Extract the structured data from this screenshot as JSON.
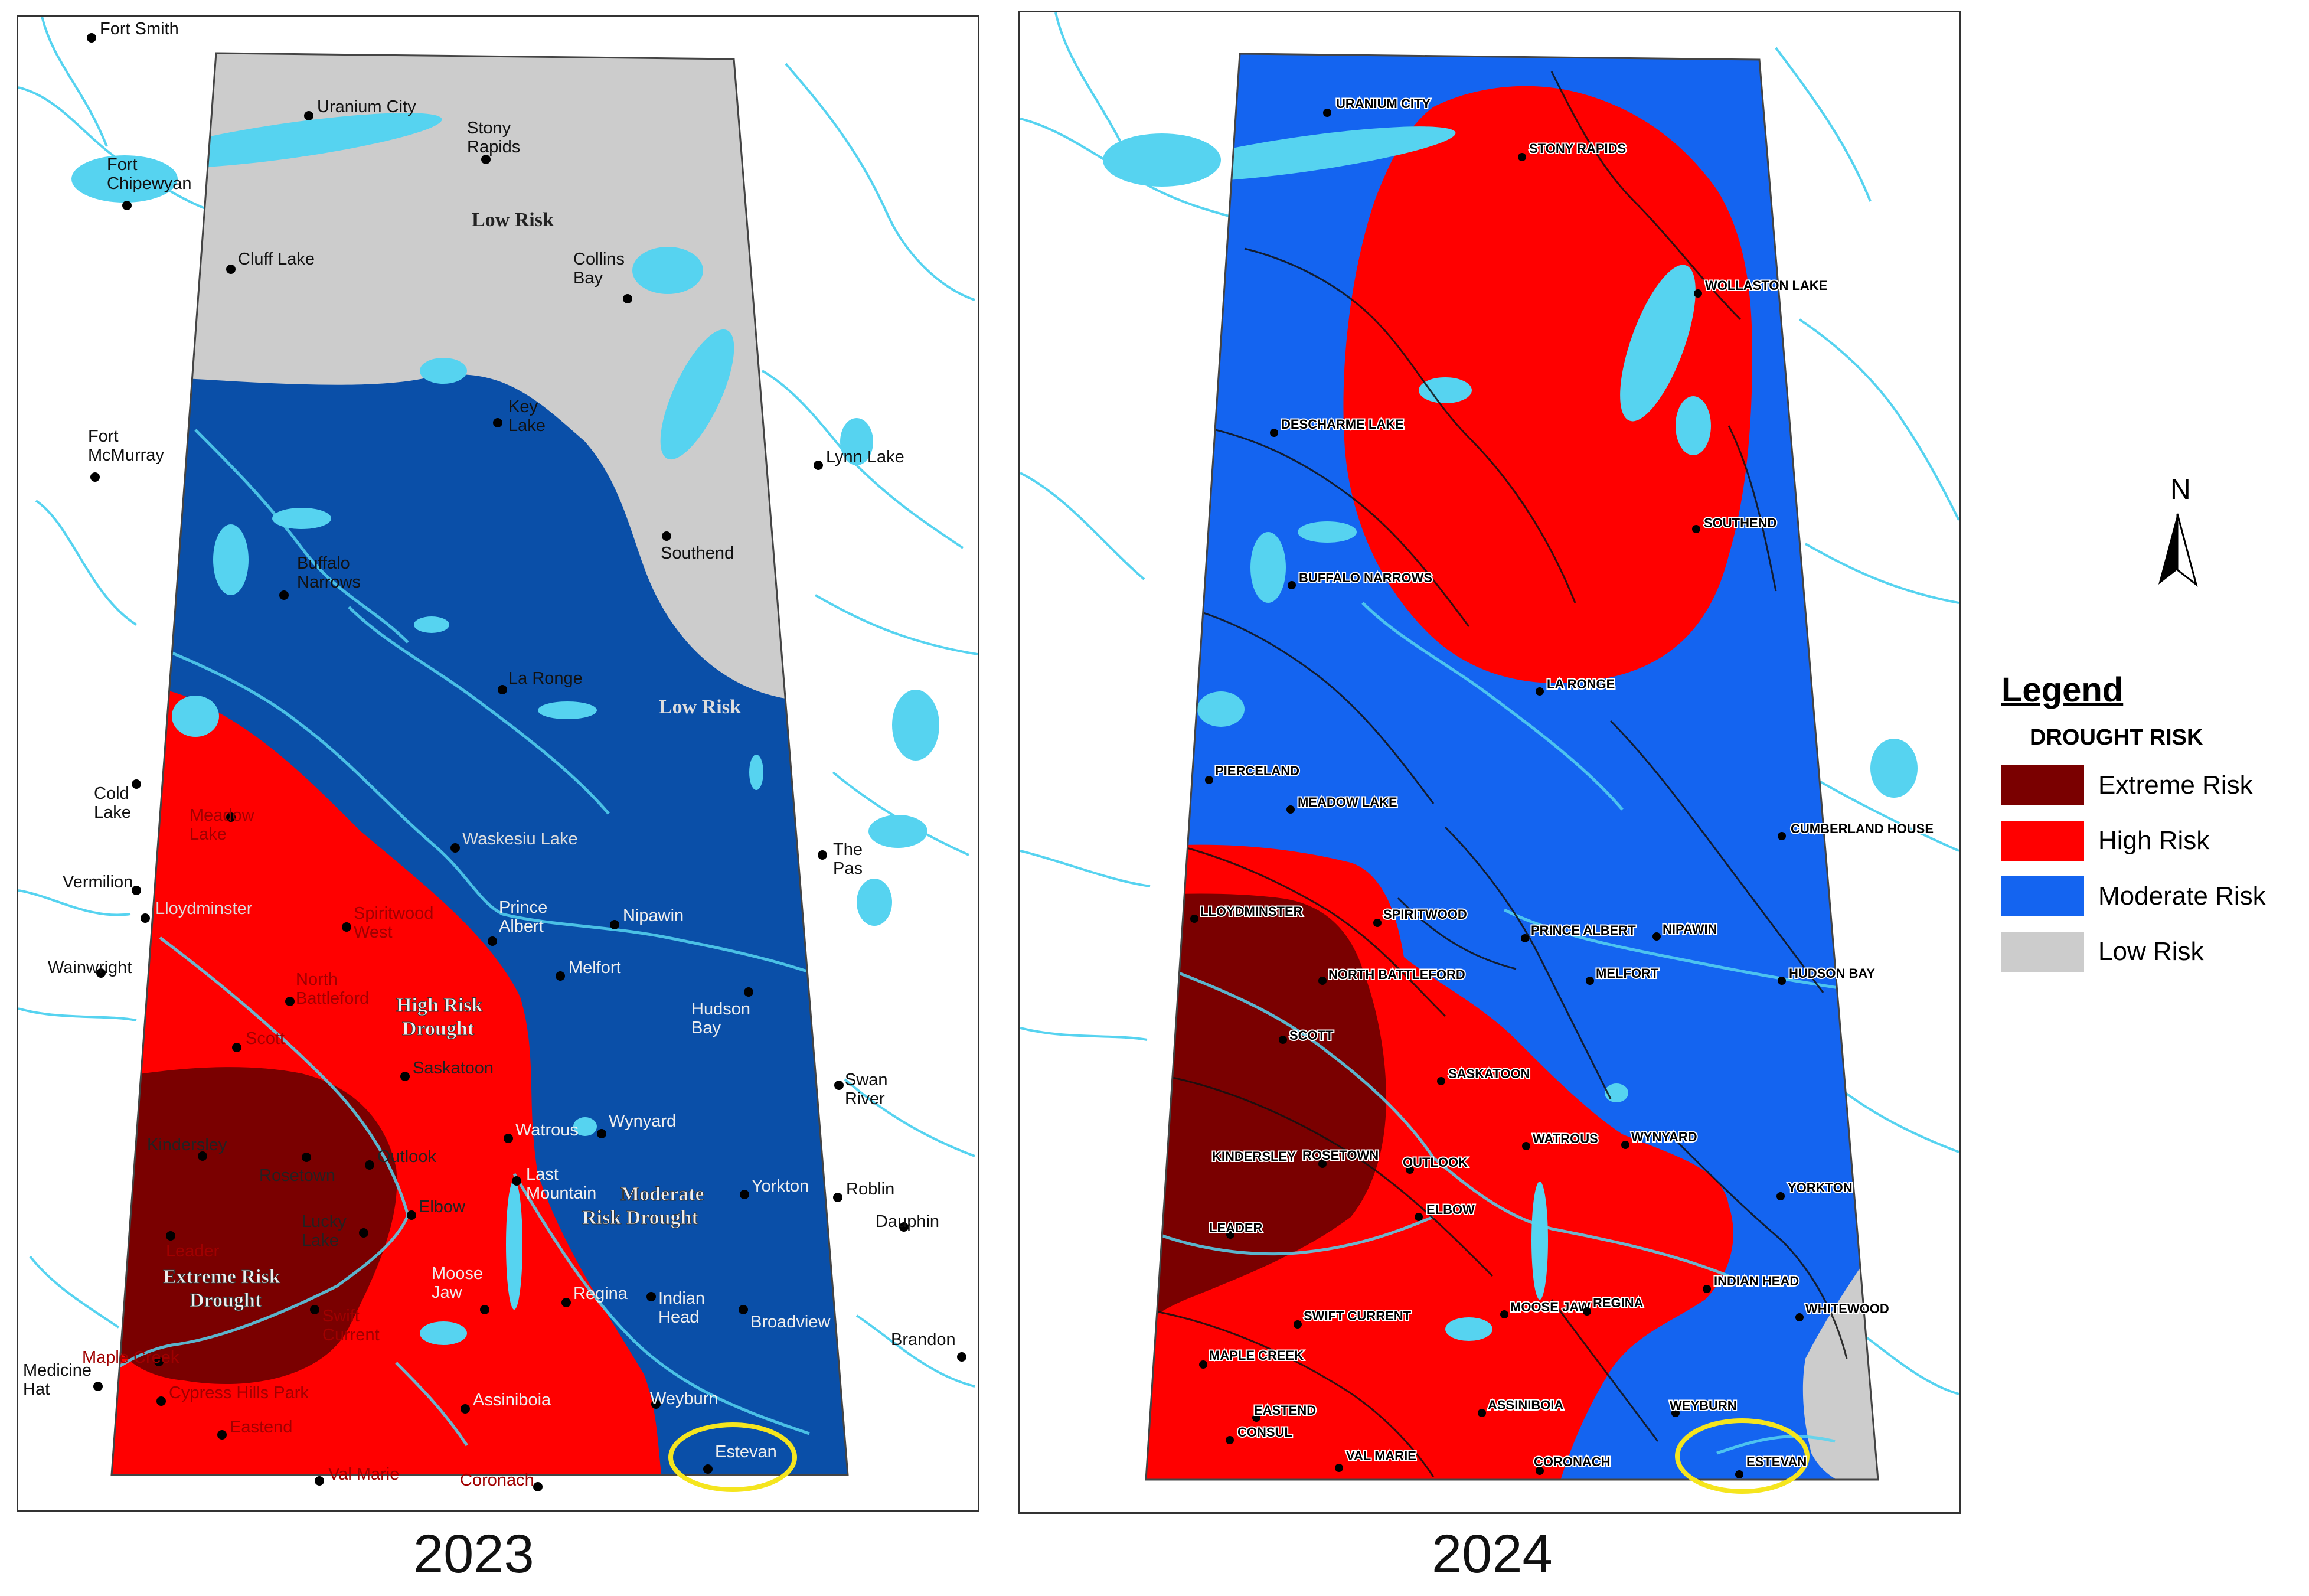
{
  "maps": {
    "map2023": {
      "year": "2023",
      "zone_labels": {
        "low_north": "Low Risk",
        "low_mid": "Low Risk",
        "high": [
          "High Risk",
          "Drought"
        ],
        "moderate": [
          "Moderate",
          "Risk Drought"
        ],
        "extreme": [
          "Extreme Risk",
          "Drought"
        ]
      },
      "places": {
        "fort_smith": "Fort Smith",
        "uranium_city": "Uranium City",
        "stony_rapids": [
          "Stony",
          "Rapids"
        ],
        "fort_chipewyan": [
          "Fort",
          "Chipewyan"
        ],
        "cluff_lake": "Cluff Lake",
        "collins_bay": [
          "Collins",
          "Bay"
        ],
        "key_lake": [
          "Key",
          "Lake"
        ],
        "fort_mcmurray": [
          "Fort",
          "McMurray"
        ],
        "lynn_lake": "Lynn Lake",
        "southend": "Southend",
        "buffalo_narrows": [
          "Buffalo",
          "Narrows"
        ],
        "la_ronge": "La Ronge",
        "cold_lake": [
          "Cold",
          "Lake"
        ],
        "meadow_lake": [
          "Meadow",
          "Lake"
        ],
        "waskesiu_lake": "Waskesiu Lake",
        "the_pas": [
          "The",
          "Pas"
        ],
        "vermilion": "Vermilion",
        "lloydminster": "Lloydminster",
        "spiritwood_west": [
          "Spiritwood",
          "West"
        ],
        "prince_albert": [
          "Prince",
          "Albert"
        ],
        "nipawin": "Nipawin",
        "wainwright": "Wainwright",
        "melfort": "Melfort",
        "north_battleford": [
          "North",
          "Battleford"
        ],
        "hudson_bay": [
          "Hudson",
          "Bay"
        ],
        "scott": "Scott",
        "swan_river": [
          "Swan",
          "River"
        ],
        "saskatoon": "Saskatoon",
        "wynyard": "Wynyard",
        "kindersley": "Kindersley",
        "watrous": "Watrous",
        "outlook": "Outlook",
        "rosetown": "Rosetown",
        "last_mountain": [
          "Last",
          "Mountain"
        ],
        "yorkton": "Yorkton",
        "roblin": "Roblin",
        "elbow": "Elbow",
        "lucky_lake": [
          "Lucky",
          "Lake"
        ],
        "dauphin": "Dauphin",
        "leader": "Leader",
        "moose_jaw": [
          "Moose",
          "Jaw"
        ],
        "regina": "Regina",
        "indian_head": [
          "Indian",
          "Head"
        ],
        "swift_current": [
          "Swift",
          "Current"
        ],
        "broadview": "Broadview",
        "brandon": "Brandon",
        "medicine_hat": [
          "Medicine",
          "Hat"
        ],
        "maple_creek": "Maple Creek",
        "cypress_hills_park": "Cypress Hills Park",
        "assiniboia": "Assiniboia",
        "weyburn": "Weyburn",
        "eastend": "Eastend",
        "estevan": "Estevan",
        "val_marie": "Val Marie",
        "coronach": "Coronach"
      }
    },
    "map2024": {
      "year": "2024",
      "places": {
        "uranium_city": "URANIUM CITY",
        "stony_rapids": "STONY RAPIDS",
        "wollaston_lake": "WOLLASTON LAKE",
        "descharme_lake": "DESCHARME LAKE",
        "southend": "SOUTHEND",
        "buffalo_narrows": "BUFFALO NARROWS",
        "la_ronge": "LA RONGE",
        "pierceland": "PIERCELAND",
        "meadow_lake": "MEADOW LAKE",
        "cumberland_house": "CUMBERLAND HOUSE",
        "lloydminster": "LLOYDMINSTER",
        "spiritwood": "SPIRITWOOD",
        "prince_albert": "PRINCE ALBERT",
        "nipawin": "NIPAWIN",
        "north_battleford": "NORTH BATTLEFORD",
        "melfort": "MELFORT",
        "hudson_bay": "HUDSON BAY",
        "scott": "SCOTT",
        "saskatoon": "SASKATOON",
        "watrous": "WATROUS",
        "wynyard": "WYNYARD",
        "kindersley": "KINDERSLEY",
        "rosetown": "ROSETOWN",
        "outlook": "OUTLOOK",
        "yorkton": "YORKTON",
        "elbow": "ELBOW",
        "leader": "LEADER",
        "indian_head": "INDIAN HEAD",
        "swift_current": "SWIFT CURRENT",
        "moose_jaw": "MOOSE JAW",
        "regina": "REGINA",
        "whitewood": "WHITEWOOD",
        "maple_creek": "MAPLE CREEK",
        "weyburn": "WEYBURN",
        "assiniboia": "ASSINIBOIA",
        "eastend": "EASTEND",
        "consul": "CONSUL",
        "val_marie": "VAL MARIE",
        "coronach": "CORONACH",
        "estevan": "ESTEVAN"
      }
    }
  },
  "north_arrow": {
    "label": "N"
  },
  "legend": {
    "title": "Legend",
    "subtitle": "DROUGHT RISK",
    "items": [
      {
        "label": "Extreme Risk",
        "color": "#7a0000"
      },
      {
        "label": "High Risk",
        "color": "#ff0000"
      },
      {
        "label": "Moderate Risk",
        "color": "#1464f0"
      },
      {
        "label": "Low Risk",
        "color": "#cccccc"
      }
    ]
  },
  "colors": {
    "extreme": "#7a0000",
    "high": "#ff0000",
    "moderate_2023": "#0a4fa8",
    "moderate_2024": "#1464f0",
    "low": "#cccccc",
    "water": "#56d3f0",
    "highlight_ring": "#f5e51e"
  }
}
